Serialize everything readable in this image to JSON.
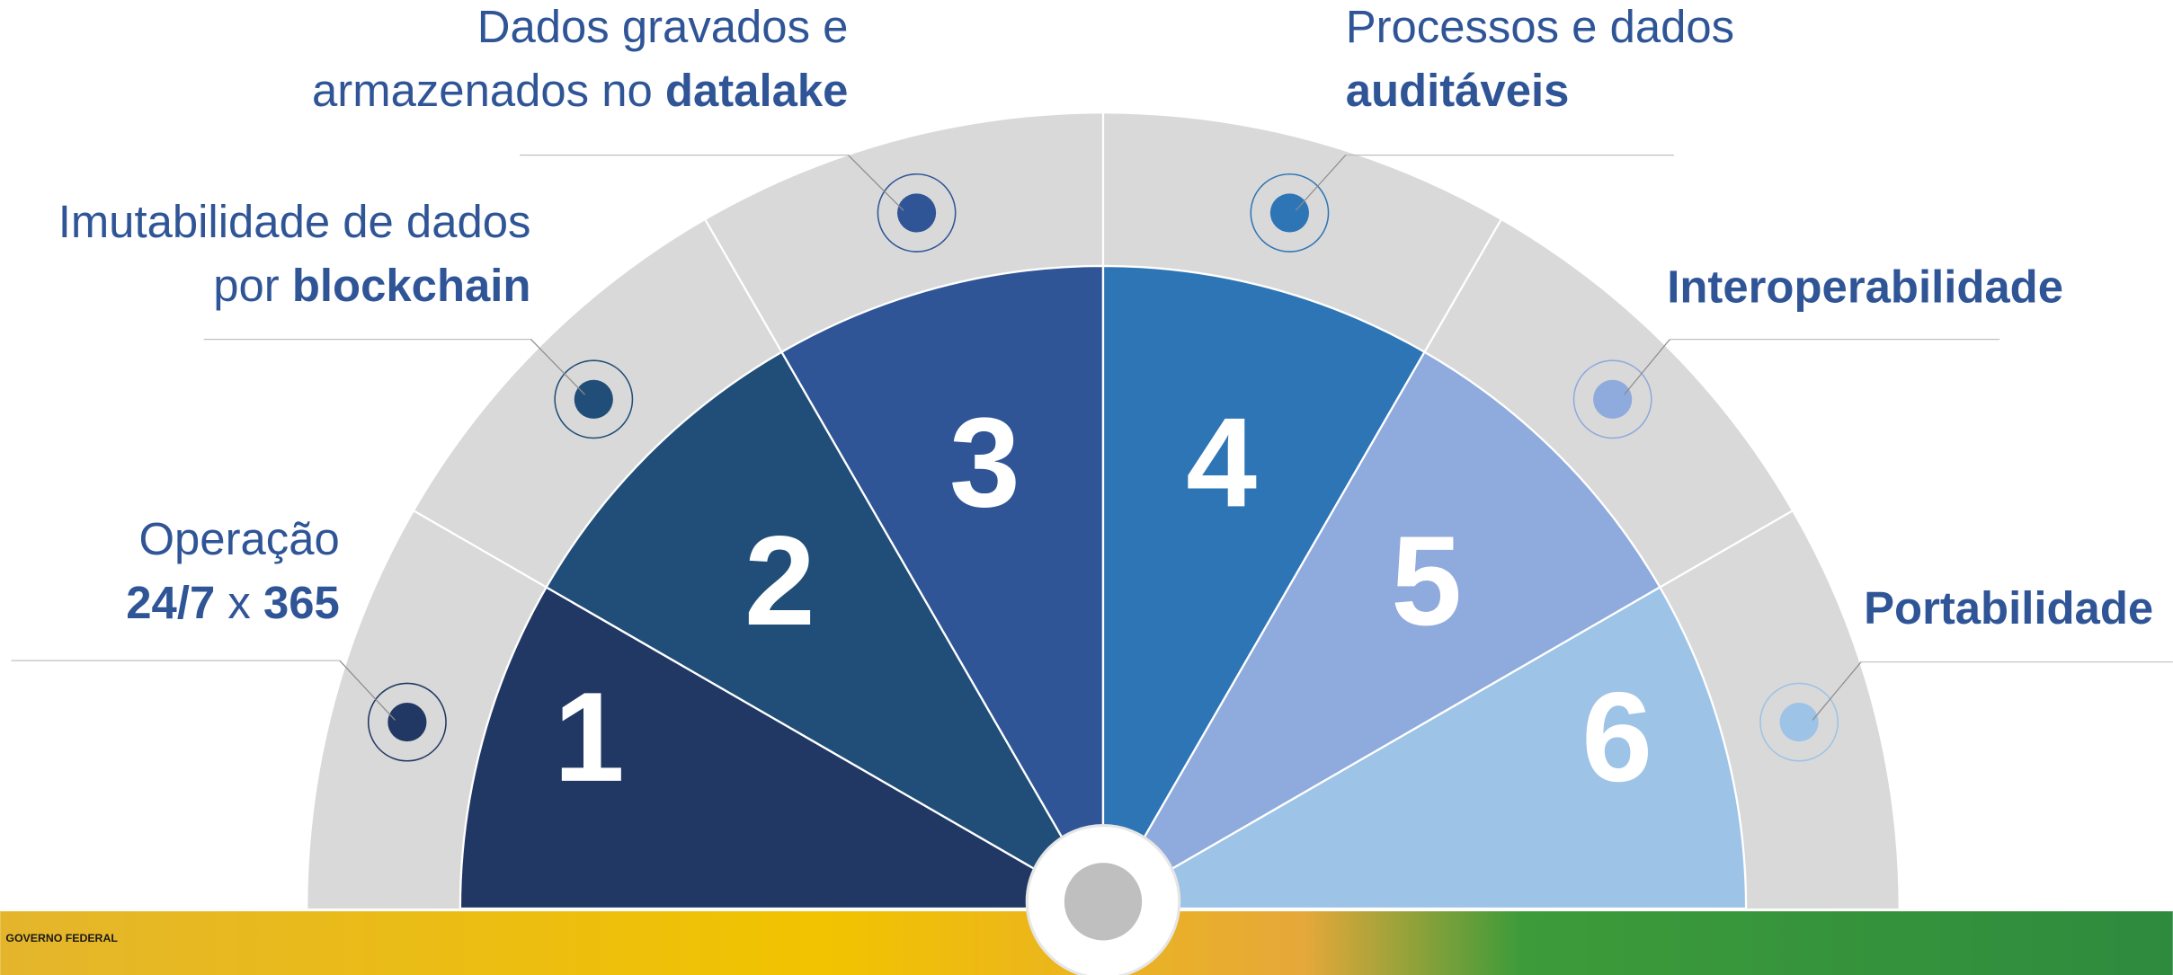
{
  "segments": [
    {
      "number": "1",
      "lines": [
        [
          {
            "text": "Operação",
            "bold": false
          }
        ],
        [
          {
            "text": "24/7",
            "bold": true
          },
          {
            "text": " x ",
            "bold": false
          },
          {
            "text": "365",
            "bold": true
          }
        ]
      ]
    },
    {
      "number": "2",
      "lines": [
        [
          {
            "text": "Imutabilidade de dados",
            "bold": false
          }
        ],
        [
          {
            "text": "por ",
            "bold": false
          },
          {
            "text": "blockchain",
            "bold": true
          }
        ]
      ]
    },
    {
      "number": "3",
      "lines": [
        [
          {
            "text": "Dados gravados e",
            "bold": false
          }
        ],
        [
          {
            "text": "armazenados no ",
            "bold": false
          },
          {
            "text": "datalake",
            "bold": true
          }
        ]
      ]
    },
    {
      "number": "4",
      "lines": [
        [
          {
            "text": "Processos e dados",
            "bold": false
          }
        ],
        [
          {
            "text": "auditáveis",
            "bold": true
          }
        ]
      ]
    },
    {
      "number": "5",
      "lines": [
        [
          {
            "text": "Interoperabilidade",
            "bold": true
          }
        ]
      ]
    },
    {
      "number": "6",
      "lines": [
        [
          {
            "text": "Portabilidade",
            "bold": true
          }
        ]
      ]
    }
  ],
  "footer": {
    "label": "GOVERNO FEDERAL"
  }
}
